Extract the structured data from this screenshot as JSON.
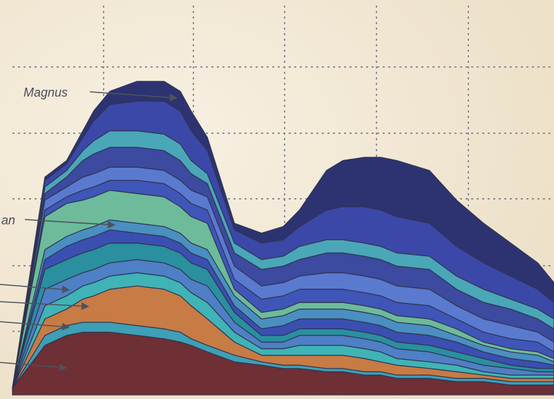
{
  "chart_data": {
    "type": "area",
    "stacked": true,
    "title": "",
    "xlabel": "",
    "ylabel": "",
    "grid": true,
    "legend": "none",
    "annotations": [
      {
        "text": "Magnus",
        "target_band": 13
      },
      {
        "text": "an",
        "target_band": 9
      },
      {
        "text": "",
        "target_band": 6
      },
      {
        "text": "",
        "target_band": 4
      },
      {
        "text": "",
        "target_band": 2
      },
      {
        "text": "",
        "target_band": 1
      }
    ],
    "x": [
      0,
      6,
      10,
      13,
      15,
      18,
      23,
      28,
      31,
      33,
      36,
      41,
      46,
      50,
      53,
      58,
      61,
      65,
      68,
      71,
      77,
      82,
      87,
      92,
      97,
      100
    ],
    "series": [
      {
        "color": "#6e2f35",
        "values": [
          2,
          15,
          18,
          19,
          19,
          19,
          18,
          17,
          16,
          15,
          13,
          10,
          9,
          8,
          8,
          7,
          7,
          6,
          6,
          5,
          5,
          4,
          4,
          3,
          3,
          3
        ]
      },
      {
        "color": "#3e9fb5",
        "values": [
          0,
          3,
          3,
          3,
          3,
          3,
          3,
          3,
          3,
          2,
          2,
          2,
          1,
          1,
          1,
          1,
          1,
          1,
          1,
          1,
          1,
          1,
          1,
          1,
          1,
          1
        ]
      },
      {
        "color": "#c77b45",
        "values": [
          0,
          5,
          5,
          7,
          8,
          10,
          12,
          12,
          11,
          10,
          8,
          4,
          2,
          3,
          3,
          4,
          4,
          4,
          3,
          3,
          2,
          2,
          1,
          1,
          1,
          1
        ]
      },
      {
        "color": "#3fb3b5",
        "values": [
          0,
          4,
          4,
          4,
          4,
          4,
          4,
          4,
          4,
          4,
          5,
          3,
          2,
          2,
          3,
          3,
          3,
          3,
          3,
          2,
          2,
          2,
          1,
          1,
          1,
          1
        ]
      },
      {
        "color": "#4f7fc4",
        "values": [
          0,
          5,
          5,
          4,
          4,
          4,
          4,
          4,
          4,
          4,
          5,
          3,
          2,
          2,
          3,
          3,
          3,
          3,
          3,
          3,
          3,
          2,
          2,
          2,
          1,
          1
        ]
      },
      {
        "color": "#2a8f9e",
        "values": [
          0,
          6,
          6,
          6,
          6,
          6,
          5,
          5,
          5,
          5,
          5,
          3,
          2,
          2,
          2,
          2,
          2,
          2,
          2,
          2,
          2,
          2,
          2,
          1,
          1,
          1
        ]
      },
      {
        "color": "#3a4fb0",
        "values": [
          0,
          3,
          4,
          4,
          4,
          4,
          3,
          3,
          3,
          3,
          3,
          2,
          2,
          3,
          3,
          3,
          3,
          3,
          3,
          3,
          3,
          3,
          2,
          2,
          2,
          1
        ]
      },
      {
        "color": "#4a8fc0",
        "values": [
          0,
          3,
          3,
          3,
          3,
          3,
          3,
          3,
          3,
          3,
          3,
          3,
          3,
          3,
          3,
          3,
          3,
          3,
          3,
          3,
          3,
          2,
          2,
          2,
          2,
          1
        ]
      },
      {
        "color": "#6dbb9a",
        "values": [
          0,
          10,
          10,
          9,
          9,
          9,
          9,
          9,
          8,
          8,
          8,
          2,
          2,
          2,
          2,
          2,
          2,
          2,
          2,
          2,
          2,
          2,
          1,
          1,
          1,
          1
        ]
      },
      {
        "color": "#3f56b8",
        "values": [
          0,
          2,
          2,
          3,
          3,
          3,
          4,
          4,
          4,
          4,
          4,
          3,
          4,
          4,
          4,
          4,
          4,
          4,
          4,
          4,
          4,
          3,
          3,
          3,
          3,
          2
        ]
      },
      {
        "color": "#5a7ad0",
        "values": [
          0,
          3,
          3,
          4,
          4,
          4,
          4,
          4,
          4,
          4,
          4,
          4,
          4,
          4,
          4,
          5,
          5,
          5,
          5,
          5,
          5,
          4,
          4,
          4,
          3,
          3
        ]
      },
      {
        "color": "#3c4a9f",
        "values": [
          0,
          2,
          3,
          5,
          6,
          6,
          6,
          6,
          6,
          5,
          4,
          4,
          5,
          5,
          5,
          6,
          6,
          6,
          6,
          6,
          6,
          5,
          5,
          5,
          4,
          4
        ]
      },
      {
        "color": "#4aa7b8",
        "values": [
          0,
          2,
          2,
          3,
          4,
          5,
          5,
          5,
          5,
          4,
          3,
          3,
          3,
          3,
          4,
          4,
          4,
          4,
          4,
          4,
          4,
          4,
          4,
          3,
          3,
          3
        ]
      },
      {
        "color": "#3b48a8",
        "values": [
          0,
          2,
          2,
          4,
          6,
          8,
          9,
          10,
          10,
          9,
          7,
          4,
          5,
          5,
          6,
          9,
          10,
          11,
          11,
          11,
          10,
          9,
          8,
          7,
          6,
          5
        ]
      },
      {
        "color": "#2d3370",
        "values": [
          0,
          1,
          1,
          2,
          3,
          4,
          6,
          6,
          6,
          6,
          4,
          2,
          3,
          4,
          5,
          12,
          14,
          15,
          16,
          17,
          16,
          14,
          12,
          10,
          8,
          6
        ]
      }
    ],
    "ylim": [
      0,
      105
    ]
  }
}
